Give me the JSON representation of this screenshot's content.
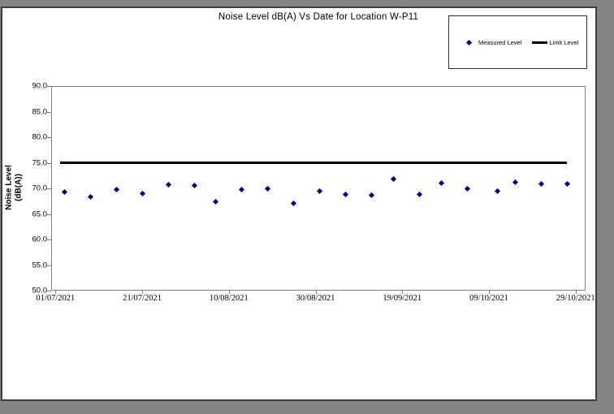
{
  "page": {
    "background": "#ffffff",
    "surround_color": "#848484"
  },
  "chart_data": {
    "type": "scatter",
    "title": "Noise Level dB(A) Vs Date for Location W-P11",
    "ylabel_line1": "Noise Level",
    "ylabel_line2": "(dB(A))",
    "xlabel": "",
    "grid": false,
    "legend_position": "top-right",
    "legend": [
      {
        "label": "Measured Level",
        "marker": "diamond",
        "color": "#000080"
      },
      {
        "label": "Limit Level",
        "marker": "line",
        "color": "#000000"
      }
    ],
    "y_axis": {
      "range": [
        50,
        90
      ],
      "tick_step": 5,
      "ticks": [
        "90.0",
        "85.0",
        "80.0",
        "75.0",
        "70.0",
        "65.0",
        "60.0",
        "55.0",
        "50.0"
      ]
    },
    "x_axis": {
      "start_date": "01/07/2021",
      "ticks": [
        "01/07/2021",
        "21/07/2021",
        "10/08/2021",
        "30/08/2021",
        "19/09/2021",
        "09/10/2021",
        "29/10/2021"
      ],
      "xlim_days": [
        -1,
        122.3
      ]
    },
    "series": [
      {
        "name": "Measured Level",
        "type": "scatter",
        "color": "#000080",
        "points": [
          {
            "date": "03/07/2021",
            "value": 69.3
          },
          {
            "date": "09/07/2021",
            "value": 68.4
          },
          {
            "date": "15/07/2021",
            "value": 69.8
          },
          {
            "date": "21/07/2021",
            "value": 68.9
          },
          {
            "date": "27/07/2021",
            "value": 70.7
          },
          {
            "date": "02/08/2021",
            "value": 70.6
          },
          {
            "date": "07/08/2021",
            "value": 67.4
          },
          {
            "date": "13/08/2021",
            "value": 69.8
          },
          {
            "date": "19/08/2021",
            "value": 70.0
          },
          {
            "date": "25/08/2021",
            "value": 67.1
          },
          {
            "date": "31/08/2021",
            "value": 69.5
          },
          {
            "date": "06/09/2021",
            "value": 68.8
          },
          {
            "date": "12/09/2021",
            "value": 68.6
          },
          {
            "date": "17/09/2021",
            "value": 71.9
          },
          {
            "date": "23/09/2021",
            "value": 68.8
          },
          {
            "date": "28/09/2021",
            "value": 71.1
          },
          {
            "date": "04/10/2021",
            "value": 70.0
          },
          {
            "date": "11/10/2021",
            "value": 69.5
          },
          {
            "date": "15/10/2021",
            "value": 71.2
          },
          {
            "date": "21/10/2021",
            "value": 70.8
          },
          {
            "date": "27/10/2021",
            "value": 70.9
          }
        ]
      },
      {
        "name": "Limit Level",
        "type": "line",
        "color": "#000000",
        "value": 75.0,
        "start_date": "02/07/2021",
        "end_date": "27/10/2021"
      }
    ]
  }
}
